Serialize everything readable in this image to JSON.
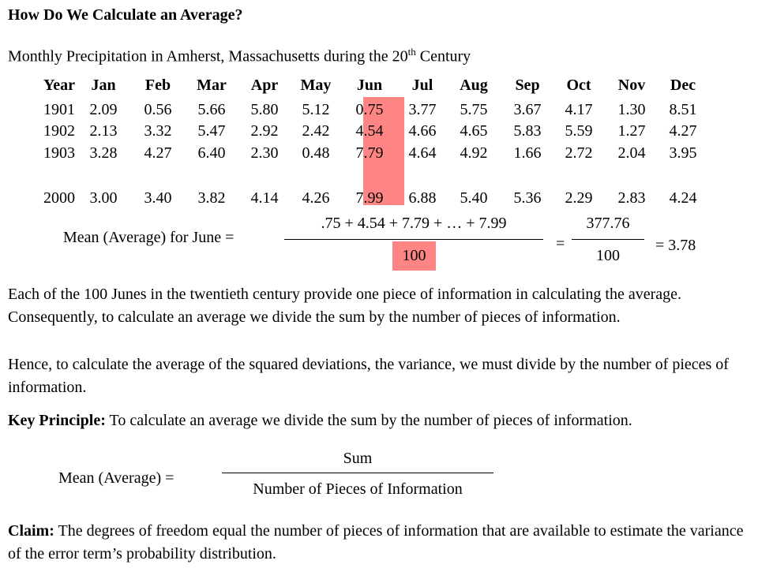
{
  "heading": "How Do We Calculate an Average?",
  "subtitle": {
    "prefix": "Monthly Precipitation in Amherst, Massachusetts during the 20",
    "sup": "th",
    "suffix": " Century"
  },
  "table": {
    "year_header": "Year",
    "months": [
      "Jan",
      "Feb",
      "Mar",
      "Apr",
      "May",
      "Jun",
      "Jul",
      "Aug",
      "Sep",
      "Oct",
      "Nov",
      "Dec"
    ],
    "rows": [
      {
        "year": "1901",
        "values": [
          "2.09",
          "0.56",
          "5.66",
          "5.80",
          "5.12",
          "0.75",
          "3.77",
          "5.75",
          "3.67",
          "4.17",
          "1.30",
          "8.51"
        ]
      },
      {
        "year": "1902",
        "values": [
          "2.13",
          "3.32",
          "5.47",
          "2.92",
          "2.42",
          "4.54",
          "4.66",
          "4.65",
          "5.83",
          "5.59",
          "1.27",
          "4.27"
        ]
      },
      {
        "year": "1903",
        "values": [
          "3.28",
          "4.27",
          "6.40",
          "2.30",
          "0.48",
          "7.79",
          "4.64",
          "4.92",
          "1.66",
          "2.72",
          "2.04",
          "3.95"
        ]
      },
      {
        "year": "2000",
        "values": [
          "3.00",
          "3.40",
          "3.82",
          "4.14",
          "4.26",
          "7.99",
          "6.88",
          "5.40",
          "5.36",
          "2.29",
          "2.83",
          "4.24"
        ]
      }
    ],
    "highlight_color": "#ff8585"
  },
  "june_mean": {
    "label": "Mean (Average) for June =",
    "numerator": ".75 + 4.54 + 7.79 + … + 7.99",
    "denominator": "100",
    "equals": "=",
    "sum_numerator": "377.76",
    "sum_denominator": "100",
    "result": "= 3.78"
  },
  "para1": "Each of the 100 Junes in the twentieth century provide one piece of information in calculating the average. Consequently, to calculate an average we divide the sum by the number of pieces of information.",
  "para2": "Hence, to calculate the average of the squared deviations, the variance, we must divide by the number of pieces of information.",
  "key_principle": {
    "label": "Key Principle:",
    "text": " To calculate an average we divide the sum by the number of pieces of information."
  },
  "mean_formula": {
    "label": "Mean (Average) =",
    "numerator": "Sum",
    "denominator": "Number of Pieces of Information"
  },
  "claim": {
    "label": "Claim:",
    "text": " The degrees of freedom equal the number of pieces of information that are available to estimate the variance of the error term’s  probability distribution."
  }
}
